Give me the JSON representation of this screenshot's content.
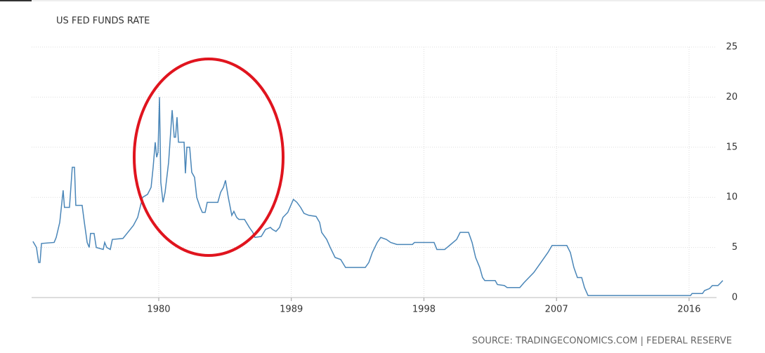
{
  "chart_data": {
    "type": "line",
    "title": "US FED FUNDS RATE",
    "source": "SOURCE: TRADINGECONOMICS.COM | FEDERAL RESERVE",
    "color": "#4a86b8",
    "grid": true,
    "xlim": [
      1971.37,
      2018.34
    ],
    "xticks": [
      1980,
      1989,
      1998,
      2007,
      2016
    ],
    "ylim": [
      0,
      25
    ],
    "yticks": [
      0,
      5,
      10,
      15,
      20,
      25
    ],
    "x": [
      1971.46,
      1971.7,
      1971.85,
      1971.94,
      1972.04,
      1972.9,
      1973.04,
      1973.28,
      1973.51,
      1973.6,
      1973.94,
      1974.13,
      1974.28,
      1974.37,
      1974.8,
      1974.95,
      1975.14,
      1975.28,
      1975.37,
      1975.61,
      1975.76,
      1976.23,
      1976.33,
      1976.47,
      1976.71,
      1976.85,
      1977.57,
      1977.9,
      1978.28,
      1978.57,
      1978.9,
      1979.24,
      1979.48,
      1979.62,
      1979.76,
      1979.86,
      1979.95,
      1980.05,
      1980.14,
      1980.29,
      1980.43,
      1980.67,
      1980.91,
      1981.05,
      1981.14,
      1981.24,
      1981.34,
      1981.72,
      1981.81,
      1981.91,
      1982.1,
      1982.24,
      1982.43,
      1982.58,
      1982.81,
      1982.96,
      1983.15,
      1983.29,
      1984.01,
      1984.2,
      1984.39,
      1984.53,
      1984.72,
      1984.96,
      1985.1,
      1985.29,
      1985.44,
      1985.82,
      1986.15,
      1986.39,
      1986.53,
      1986.96,
      1987.25,
      1987.58,
      1987.72,
      1987.96,
      1988.2,
      1988.43,
      1988.76,
      1989.14,
      1989.38,
      1989.63,
      1989.86,
      1990.2,
      1990.68,
      1990.92,
      1991.06,
      1991.4,
      1991.64,
      1991.97,
      1992.35,
      1992.68,
      1994.02,
      1994.26,
      1994.5,
      1994.83,
      1995.07,
      1995.45,
      1995.74,
      1996.17,
      1997.22,
      1997.36,
      1998.69,
      1998.88,
      1999.41,
      1999.74,
      2000.22,
      2000.46,
      2001.03,
      2001.27,
      2001.51,
      2001.79,
      2001.98,
      2002.13,
      2002.84,
      2002.99,
      2003.46,
      2003.65,
      2004.51,
      2004.8,
      2005.46,
      2005.94,
      2006.42,
      2006.7,
      2007.7,
      2007.94,
      2008.18,
      2008.42,
      2008.71,
      2008.9,
      2009.14,
      2016.1,
      2016.2,
      2016.91,
      2017.05,
      2017.39,
      2017.58,
      2017.96,
      2018.1,
      2018.29
    ],
    "series": [
      {
        "name": "US Fed Funds Rate",
        "values": [
          5.6,
          5.0,
          3.5,
          3.5,
          5.4,
          5.5,
          6.0,
          7.5,
          10.7,
          9.0,
          9.0,
          13.0,
          13.0,
          9.2,
          9.2,
          7.5,
          5.5,
          5.0,
          6.4,
          6.4,
          5.0,
          4.8,
          5.5,
          5.0,
          4.8,
          5.8,
          5.9,
          6.5,
          7.2,
          8.0,
          10.0,
          10.3,
          11.0,
          13.0,
          15.5,
          14.0,
          14.5,
          20.0,
          11.5,
          9.5,
          10.5,
          13.5,
          18.7,
          16.0,
          16.0,
          18.0,
          15.5,
          15.5,
          12.4,
          15.0,
          15.0,
          12.5,
          12.0,
          10.0,
          9.0,
          8.5,
          8.5,
          9.5,
          9.5,
          10.5,
          11.0,
          11.7,
          10.0,
          8.2,
          8.6,
          8.0,
          7.8,
          7.8,
          7.0,
          6.5,
          6.0,
          6.1,
          6.8,
          7.0,
          6.8,
          6.6,
          7.0,
          8.0,
          8.5,
          9.8,
          9.5,
          9.0,
          8.4,
          8.2,
          8.1,
          7.5,
          6.5,
          5.8,
          5.0,
          4.0,
          3.8,
          3.0,
          3.0,
          3.5,
          4.5,
          5.5,
          6.0,
          5.8,
          5.5,
          5.3,
          5.3,
          5.5,
          5.5,
          4.8,
          4.8,
          5.2,
          5.8,
          6.5,
          6.5,
          5.5,
          4.0,
          3.0,
          2.0,
          1.7,
          1.7,
          1.3,
          1.2,
          1.0,
          1.0,
          1.5,
          2.5,
          3.5,
          4.5,
          5.2,
          5.2,
          4.5,
          3.0,
          2.0,
          2.0,
          1.0,
          0.2,
          0.2,
          0.4,
          0.4,
          0.7,
          0.9,
          1.2,
          1.2,
          1.4,
          1.7
        ]
      }
    ]
  }
}
